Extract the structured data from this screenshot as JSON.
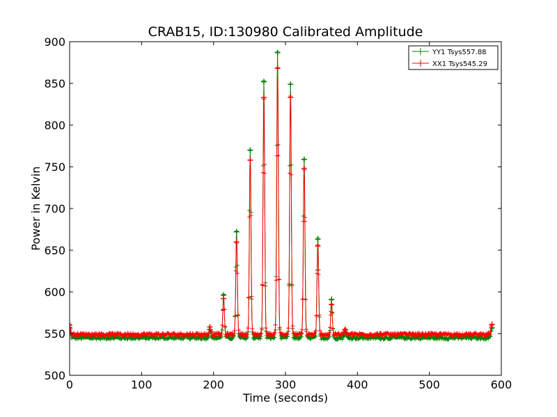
{
  "chart_data": {
    "type": "line",
    "title": "CRAB15, ID:130980 Calibrated Amplitude",
    "xlabel": "Time (seconds)",
    "ylabel": "Power in Kelvin",
    "xlim": [
      0,
      600
    ],
    "ylim": [
      500,
      900
    ],
    "x_ticks": [
      "0",
      "100",
      "200",
      "300",
      "400",
      "500",
      "600"
    ],
    "y_ticks": [
      "500",
      "550",
      "600",
      "650",
      "700",
      "750",
      "800",
      "850",
      "900"
    ],
    "grid": false,
    "legend_position": "top-right",
    "marker": "+",
    "series": [
      {
        "name": "YY1 Tsys557.88",
        "color": "#008000",
        "baseline": 545,
        "x_range": [
          0,
          587
        ],
        "peaks": [
          {
            "x": 0,
            "y": 557
          },
          {
            "x": 195,
            "y": 555
          },
          {
            "x": 214,
            "y": 596
          },
          {
            "x": 232,
            "y": 672
          },
          {
            "x": 251,
            "y": 770
          },
          {
            "x": 270,
            "y": 852
          },
          {
            "x": 289,
            "y": 887
          },
          {
            "x": 307,
            "y": 849
          },
          {
            "x": 326,
            "y": 759
          },
          {
            "x": 345,
            "y": 663
          },
          {
            "x": 364,
            "y": 591
          },
          {
            "x": 383,
            "y": 552
          },
          {
            "x": 587,
            "y": 557
          }
        ]
      },
      {
        "name": "XX1 Tsys545.29",
        "color": "#ff0000",
        "baseline": 549,
        "x_range": [
          0,
          587
        ],
        "peaks": [
          {
            "x": 0,
            "y": 560
          },
          {
            "x": 195,
            "y": 558
          },
          {
            "x": 214,
            "y": 592
          },
          {
            "x": 232,
            "y": 660
          },
          {
            "x": 251,
            "y": 758
          },
          {
            "x": 270,
            "y": 833
          },
          {
            "x": 289,
            "y": 868
          },
          {
            "x": 307,
            "y": 833
          },
          {
            "x": 326,
            "y": 748
          },
          {
            "x": 345,
            "y": 655
          },
          {
            "x": 364,
            "y": 585
          },
          {
            "x": 383,
            "y": 555
          },
          {
            "x": 587,
            "y": 561
          }
        ]
      }
    ]
  }
}
